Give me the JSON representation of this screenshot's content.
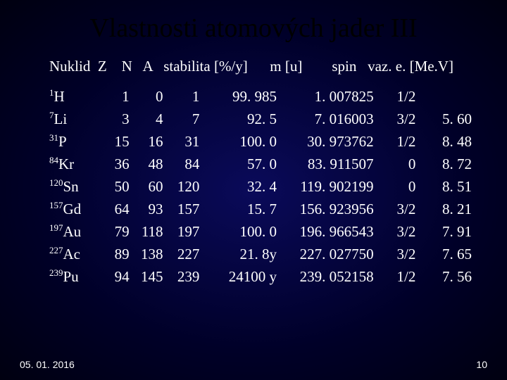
{
  "title": "Vlastnosti atomových jader III",
  "header": {
    "nuklid": "Nuklid",
    "z": "Z",
    "n": "N",
    "a": "A",
    "stab": "stabilita [%/y]",
    "mu": "m [u]",
    "spin": "spin",
    "vaz": "vaz. e. [Me.V]"
  },
  "rows": [
    {
      "sup": "1",
      "el": "H",
      "z": "1",
      "n": "0",
      "a": "1",
      "stab": "99. 985",
      "mu": "1. 007825",
      "spin": "1/2",
      "vaz": ""
    },
    {
      "sup": "7",
      "el": "Li",
      "z": "3",
      "n": "4",
      "a": "7",
      "stab": "92. 5",
      "mu": "7. 016003",
      "spin": "3/2",
      "vaz": "5. 60"
    },
    {
      "sup": "31",
      "el": "P",
      "z": "15",
      "n": "16",
      "a": "31",
      "stab": "100. 0",
      "mu": "30. 973762",
      "spin": "1/2",
      "vaz": "8. 48"
    },
    {
      "sup": "84",
      "el": "Kr",
      "z": "36",
      "n": "48",
      "a": "84",
      "stab": "57. 0",
      "mu": "83. 911507",
      "spin": "0",
      "vaz": "8. 72"
    },
    {
      "sup": "120",
      "el": "Sn",
      "z": "50",
      "n": "60",
      "a": "120",
      "stab": "32. 4",
      "mu": "119. 902199",
      "spin": "0",
      "vaz": "8. 51"
    },
    {
      "sup": "157",
      "el": "Gd",
      "z": "64",
      "n": "93",
      "a": "157",
      "stab": "15. 7",
      "mu": "156. 923956",
      "spin": "3/2",
      "vaz": "8. 21"
    },
    {
      "sup": "197",
      "el": "Au",
      "z": "79",
      "n": "118",
      "a": "197",
      "stab": "100. 0",
      "mu": "196. 966543",
      "spin": "3/2",
      "vaz": "7. 91"
    },
    {
      "sup": "227",
      "el": "Ac",
      "z": "89",
      "n": "138",
      "a": "227",
      "stab": "21. 8y",
      "mu": "227. 027750",
      "spin": "3/2",
      "vaz": "7. 65"
    },
    {
      "sup": "239",
      "el": "Pu",
      "z": "94",
      "n": "145",
      "a": "239",
      "stab": "24100 y",
      "mu": "239. 052158",
      "spin": "1/2",
      "vaz": "7. 56"
    }
  ],
  "footer": {
    "date": "05. 01. 2016",
    "page": "10"
  },
  "style": {
    "background_center": "#0a0a5a",
    "background_edge": "#000010",
    "title_color": "#000000",
    "text_color": "#ffffff",
    "title_fontsize": 38,
    "body_fontsize": 21,
    "footer_fontsize": 14
  }
}
